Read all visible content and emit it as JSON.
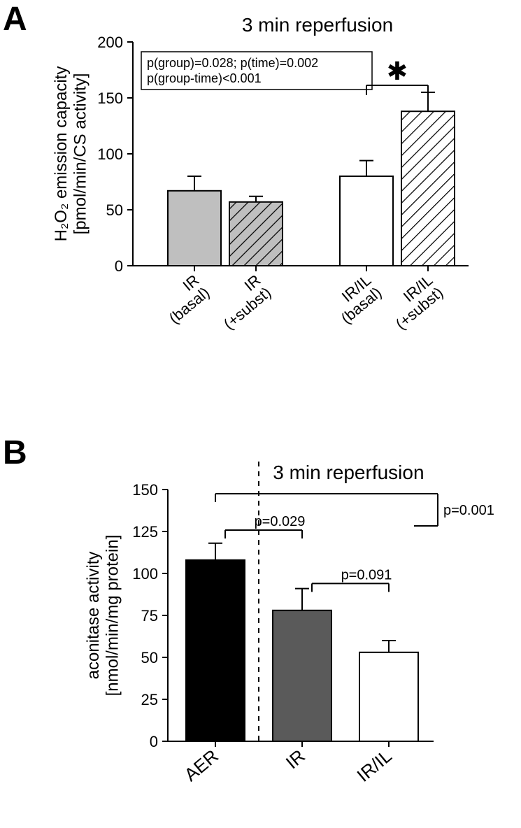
{
  "panelA": {
    "label": "A",
    "type": "bar",
    "title": "3 min reperfusion",
    "title_fontsize": 28,
    "ylabel_line1": "H₂O₂ emission capacity",
    "ylabel_line2": "[pmol/min/CS activity]",
    "ylabel_fontsize": 24,
    "ylim": [
      0,
      200
    ],
    "ytick_step": 50,
    "yticks": [
      0,
      50,
      100,
      150,
      200
    ],
    "stats_box": {
      "line1": "p(group)=0.028; p(time)=0.002",
      "line2": "p(group-time)<0.001",
      "fontsize": 18,
      "border_color": "#000000",
      "background": "#ffffff"
    },
    "significance": {
      "symbol": "✱",
      "fontsize": 36
    },
    "bars": [
      {
        "label_top": "IR",
        "label_bottom": "(basal)",
        "value": 67,
        "error": 13,
        "fill": "#bfbfbf",
        "hatched": false
      },
      {
        "label_top": "IR",
        "label_bottom": "(+subst)",
        "value": 57,
        "error": 5,
        "fill": "#bfbfbf",
        "hatched": true
      },
      {
        "label_top": "IR/IL",
        "label_bottom": "(basal)",
        "value": 80,
        "error": 14,
        "fill": "#ffffff",
        "hatched": false
      },
      {
        "label_top": "IR/IL",
        "label_bottom": "(+subst)",
        "value": 138,
        "error": 17,
        "fill": "#ffffff",
        "hatched": true
      }
    ],
    "bar_border": "#000000",
    "bar_border_width": 2,
    "axis_color": "#000000",
    "axis_width": 2,
    "xlabel_fontsize": 22
  },
  "panelB": {
    "label": "B",
    "type": "bar",
    "title": "3 min reperfusion",
    "title_fontsize": 28,
    "ylabel_line1": "aconitase activity",
    "ylabel_line2": "[nmol/min/mg protein]",
    "ylabel_fontsize": 24,
    "ylim": [
      0,
      150
    ],
    "ytick_step": 25,
    "yticks": [
      0,
      25,
      50,
      75,
      100,
      125,
      150
    ],
    "bars": [
      {
        "label": "AER",
        "value": 108,
        "error": 10,
        "fill": "#000000"
      },
      {
        "label": "IR",
        "value": 78,
        "error": 13,
        "fill": "#5a5a5a"
      },
      {
        "label": "IR/IL",
        "value": 53,
        "error": 7,
        "fill": "#ffffff"
      }
    ],
    "pvalues": {
      "aer_ir": "p=0.029",
      "ir_iril": "p=0.091",
      "aer_iril": "p=0.001",
      "fontsize": 20
    },
    "bar_border": "#000000",
    "bar_border_width": 2,
    "axis_color": "#000000",
    "axis_width": 2,
    "xlabel_fontsize": 26,
    "dashed_line_color": "#000000"
  }
}
